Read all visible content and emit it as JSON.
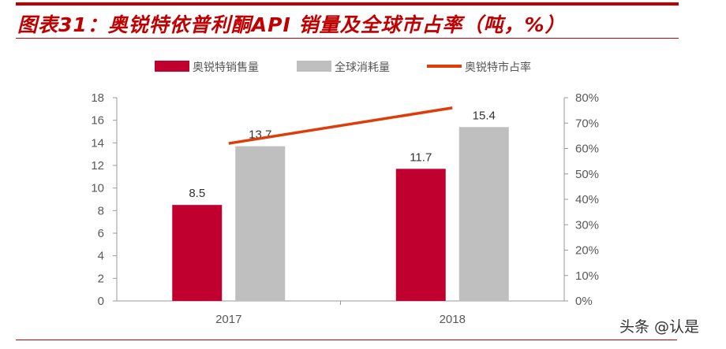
{
  "header": {
    "title": "图表31：奥锐特依普利酮API 销量及全球市占率（吨，%）"
  },
  "watermark": "头条 @认是",
  "chart_data": {
    "type": "bar",
    "categories": [
      "2017",
      "2018"
    ],
    "series": [
      {
        "name": "奥锐特销售量",
        "kind": "bar",
        "axis": "left",
        "color": "#c0002f",
        "values": [
          8.5,
          11.7
        ],
        "labels": [
          "8.5",
          "11.7"
        ]
      },
      {
        "name": "全球消耗量",
        "kind": "bar",
        "axis": "left",
        "color": "#bfbfbf",
        "values": [
          13.7,
          15.4
        ],
        "labels": [
          "13.7",
          "15.4"
        ]
      },
      {
        "name": "奥锐特市占率",
        "kind": "line",
        "axis": "right",
        "color": "#e03c0a",
        "values": [
          62,
          76
        ]
      }
    ],
    "ylim": [
      0,
      18
    ],
    "yticks": [
      "0",
      "2",
      "4",
      "6",
      "8",
      "10",
      "12",
      "14",
      "16",
      "18"
    ],
    "y2lim": [
      0,
      80
    ],
    "y2ticks": [
      "0%",
      "10%",
      "20%",
      "30%",
      "40%",
      "50%",
      "60%",
      "70%",
      "80%"
    ],
    "legend": "top",
    "grid": false
  }
}
